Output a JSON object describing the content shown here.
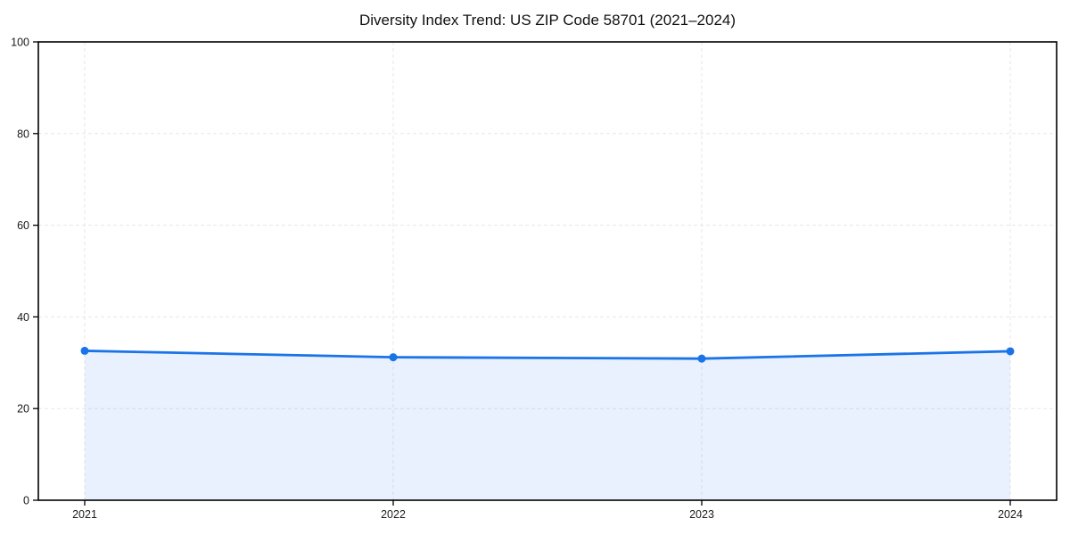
{
  "page": {
    "background": "#ffffff"
  },
  "chart_data": {
    "type": "area",
    "title": "Diversity Index Trend: US ZIP Code 58701 (2021–2024)",
    "categories": [
      "2021",
      "2022",
      "2023",
      "2024"
    ],
    "series": [
      {
        "name": "Diversity Index",
        "values": [
          32.6,
          31.2,
          30.9,
          32.5
        ]
      }
    ],
    "xlabel": "",
    "ylabel": "",
    "ylim": [
      0,
      100
    ],
    "yticks": [
      0,
      20,
      40,
      60,
      80,
      100
    ],
    "grid": "dashed both axes",
    "legend_position": "none",
    "marker": "circle",
    "colors": {
      "line": "#1a73e8",
      "marker": "#1a73e8",
      "fill": "rgba(26,115,232,0.10)",
      "grid": "#e0e0e0",
      "axis": "#000000",
      "text": "#1a1a1a"
    }
  }
}
